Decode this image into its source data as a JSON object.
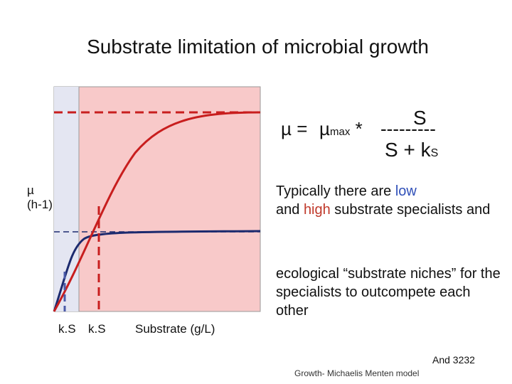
{
  "slide": {
    "title": "Substrate limitation of microbial growth",
    "y_axis_label_line1": "µ",
    "y_axis_label_line2": "(h-1)",
    "x_label_ks_1": "k.S",
    "x_label_ks_2": "k.S",
    "x_axis_label": "Substrate (g/L)",
    "formula": {
      "mu": "µ =",
      "mu_max": "µ",
      "mu_max_sub": "max",
      "times": "*",
      "dashes": "---------",
      "numerator": "S",
      "denominator": "S + k",
      "denominator_sub": "S"
    },
    "text1_part1": "Typically  there are ",
    "text1_low": "low",
    "text1_and": "and ",
    "text1_high": "high",
    "text1_part2": " substrate specialists and",
    "text2": "ecological “substrate niches” for the specialists to outcompete each other",
    "reference": "And 3232",
    "footer": "Growth- Michaelis Menten model"
  },
  "colors": {
    "plot_background": "#f8c9c9",
    "low_region": "#e4e6f2",
    "red_curve": "#c81e1e",
    "blue_curve": "#1c2a6e",
    "low_word": "#2f4fb8",
    "high_word": "#c0392b"
  }
}
